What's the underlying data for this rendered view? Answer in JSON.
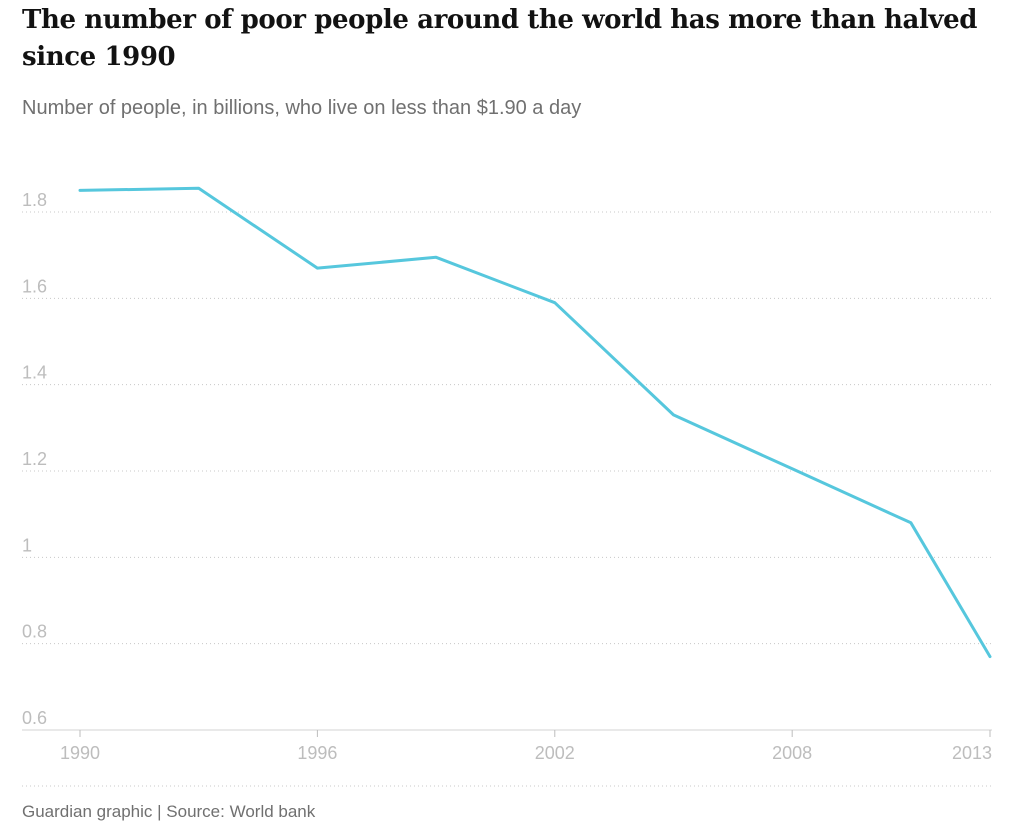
{
  "chart_data": {
    "type": "line",
    "title": "The number of poor people around the world has more than halved since 1990",
    "subtitle": "Number of people, in billions, who live on less than $1.90 a day",
    "xlabel": "",
    "ylabel": "",
    "x": [
      1990,
      1993,
      1996,
      1999,
      2002,
      2005,
      2008,
      2011,
      2013
    ],
    "series": [
      {
        "values": [
          1.85,
          1.855,
          1.67,
          1.695,
          1.59,
          1.33,
          1.205,
          1.08,
          0.77
        ],
        "color": "#56c7dd"
      }
    ],
    "xlim": [
      1990,
      2013
    ],
    "ylim": [
      0.6,
      1.9
    ],
    "x_ticks": [
      1990,
      1996,
      2002,
      2008,
      2013
    ],
    "y_ticks": [
      0.6,
      0.8,
      1,
      1.2,
      1.4,
      1.6,
      1.8
    ],
    "x_tick_labels": [
      "1990",
      "1996",
      "2002",
      "2008",
      "2013"
    ],
    "y_tick_labels": [
      "0.6",
      "0.8",
      "1",
      "1.2",
      "1.4",
      "1.6",
      "1.8"
    ],
    "grid": true,
    "grid_style": "dotted",
    "legend": "none",
    "source": "Guardian graphic | Source: World bank"
  }
}
